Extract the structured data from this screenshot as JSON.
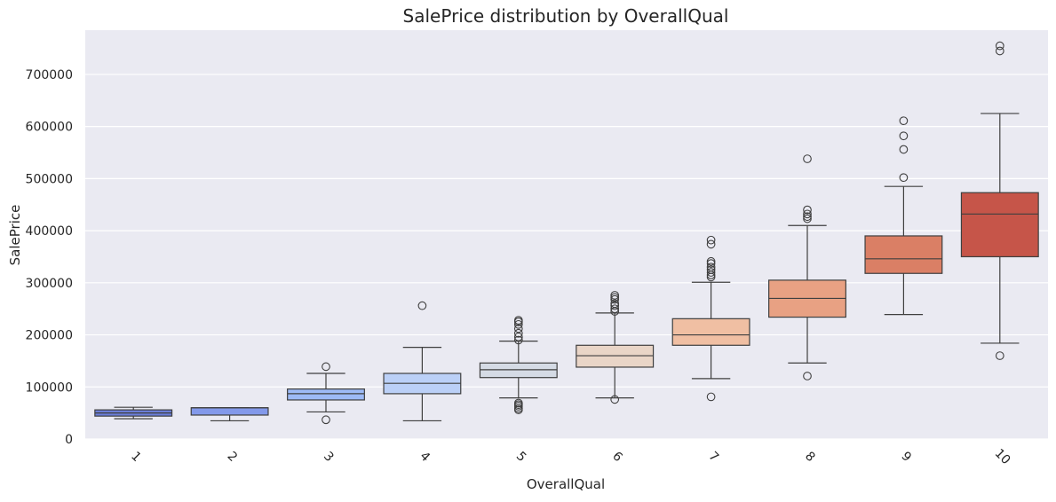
{
  "chart_data": {
    "type": "box",
    "title": "SalePrice distribution by OverallQual",
    "xlabel": "OverallQual",
    "ylabel": "SalePrice",
    "ylim": [
      0,
      785000
    ],
    "yticks": [
      0,
      100000,
      200000,
      300000,
      400000,
      500000,
      600000,
      700000
    ],
    "ytick_labels": [
      "0",
      "100000",
      "200000",
      "300000",
      "400000",
      "500000",
      "600000",
      "700000"
    ],
    "categories": [
      "1",
      "2",
      "3",
      "4",
      "5",
      "6",
      "7",
      "8",
      "9",
      "10"
    ],
    "colors": [
      "#6b7ed8",
      "#8399ea",
      "#9dbaf6",
      "#bbd0f7",
      "#d5dbe5",
      "#e9d5c7",
      "#f0bfa3",
      "#e8a183",
      "#da7f65",
      "#c65549"
    ],
    "boxes": [
      {
        "q1": 44000,
        "median": 50000,
        "q3": 56000,
        "whisker_low": 39000,
        "whisker_high": 61000,
        "outliers": []
      },
      {
        "q1": 46000,
        "median": 60000,
        "q3": 60000,
        "whisker_low": 35000,
        "whisker_high": 60000,
        "outliers": []
      },
      {
        "q1": 75000,
        "median": 87000,
        "q3": 96000,
        "whisker_low": 52000,
        "whisker_high": 126000,
        "outliers": [
          37000,
          139000
        ]
      },
      {
        "q1": 87000,
        "median": 107000,
        "q3": 126000,
        "whisker_low": 35000,
        "whisker_high": 176000,
        "outliers": [
          256000
        ]
      },
      {
        "q1": 118000,
        "median": 133000,
        "q3": 146000,
        "whisker_low": 79000,
        "whisker_high": 188000,
        "outliers": [
          56000,
          59000,
          63000,
          66000,
          69000,
          190000,
          196000,
          203000,
          212000,
          220000,
          225000,
          228000
        ]
      },
      {
        "q1": 138000,
        "median": 160000,
        "q3": 180000,
        "whisker_low": 79000,
        "whisker_high": 242000,
        "outliers": [
          76000,
          245000,
          250000,
          256000,
          260000,
          268000,
          272000,
          276000
        ]
      },
      {
        "q1": 180000,
        "median": 200000,
        "q3": 231000,
        "whisker_low": 116000,
        "whisker_high": 301000,
        "outliers": [
          81000,
          311000,
          315000,
          320000,
          325000,
          330000,
          337000,
          341000,
          374000,
          382000
        ]
      },
      {
        "q1": 234000,
        "median": 270000,
        "q3": 305000,
        "whisker_low": 146000,
        "whisker_high": 410000,
        "outliers": [
          121000,
          423000,
          427000,
          432000,
          440000,
          538000
        ]
      },
      {
        "q1": 318000,
        "median": 346000,
        "q3": 390000,
        "whisker_low": 239000,
        "whisker_high": 485000,
        "outliers": [
          502000,
          556000,
          582000,
          611000
        ]
      },
      {
        "q1": 350000,
        "median": 432000,
        "q3": 473000,
        "whisker_low": 184000,
        "whisker_high": 625000,
        "outliers": [
          160000,
          745000,
          755000
        ]
      }
    ]
  }
}
